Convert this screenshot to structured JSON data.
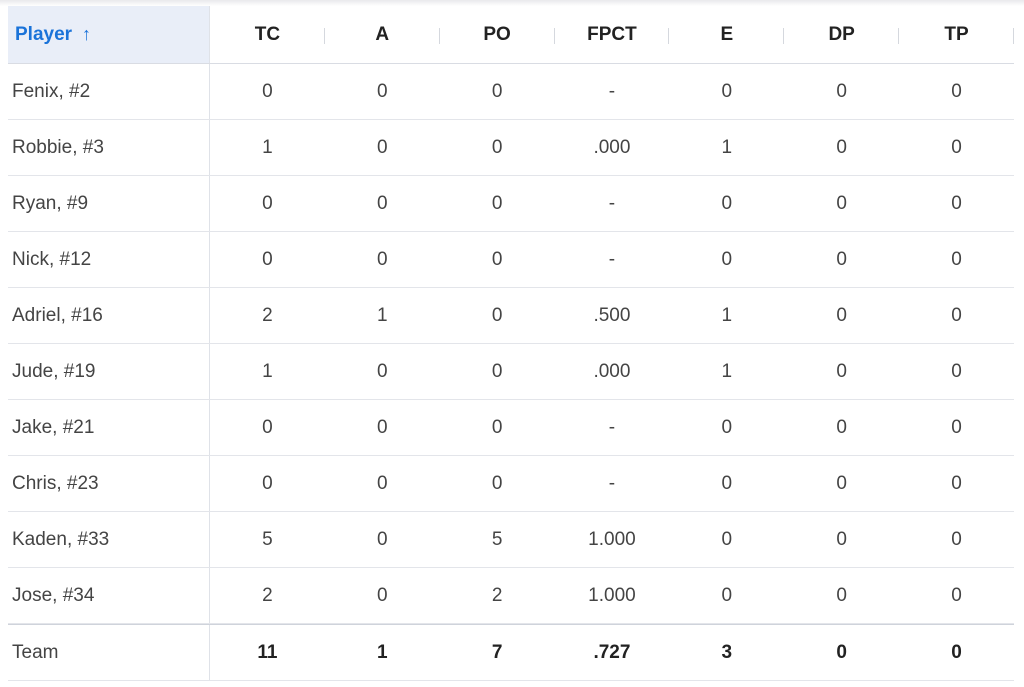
{
  "table": {
    "sort_column_label": "Player",
    "sort_icon": "arrow-up-icon",
    "sort_glyph": "↑",
    "stat_columns": [
      "TC",
      "A",
      "PO",
      "FPCT",
      "E",
      "DP",
      "TP"
    ],
    "rows": [
      {
        "player": "Fenix, #2",
        "stats": [
          "0",
          "0",
          "0",
          "-",
          "0",
          "0",
          "0"
        ]
      },
      {
        "player": "Robbie, #3",
        "stats": [
          "1",
          "0",
          "0",
          ".000",
          "1",
          "0",
          "0"
        ]
      },
      {
        "player": "Ryan, #9",
        "stats": [
          "0",
          "0",
          "0",
          "-",
          "0",
          "0",
          "0"
        ]
      },
      {
        "player": "Nick, #12",
        "stats": [
          "0",
          "0",
          "0",
          "-",
          "0",
          "0",
          "0"
        ]
      },
      {
        "player": "Adriel, #16",
        "stats": [
          "2",
          "1",
          "0",
          ".500",
          "1",
          "0",
          "0"
        ]
      },
      {
        "player": "Jude, #19",
        "stats": [
          "1",
          "0",
          "0",
          ".000",
          "1",
          "0",
          "0"
        ]
      },
      {
        "player": "Jake, #21",
        "stats": [
          "0",
          "0",
          "0",
          "-",
          "0",
          "0",
          "0"
        ]
      },
      {
        "player": "Chris, #23",
        "stats": [
          "0",
          "0",
          "0",
          "-",
          "0",
          "0",
          "0"
        ]
      },
      {
        "player": "Kaden, #33",
        "stats": [
          "5",
          "0",
          "5",
          "1.000",
          "0",
          "0",
          "0"
        ]
      },
      {
        "player": "Jose, #34",
        "stats": [
          "2",
          "0",
          "2",
          "1.000",
          "0",
          "0",
          "0"
        ]
      }
    ],
    "team_row": {
      "player": "Team",
      "stats": [
        "11",
        "1",
        "7",
        ".727",
        "3",
        "0",
        "0"
      ]
    }
  },
  "colors": {
    "accent": "#1a73d9",
    "header_highlight": "#e9eef8",
    "text": "#444444",
    "row_border": "#e3e5ea"
  }
}
